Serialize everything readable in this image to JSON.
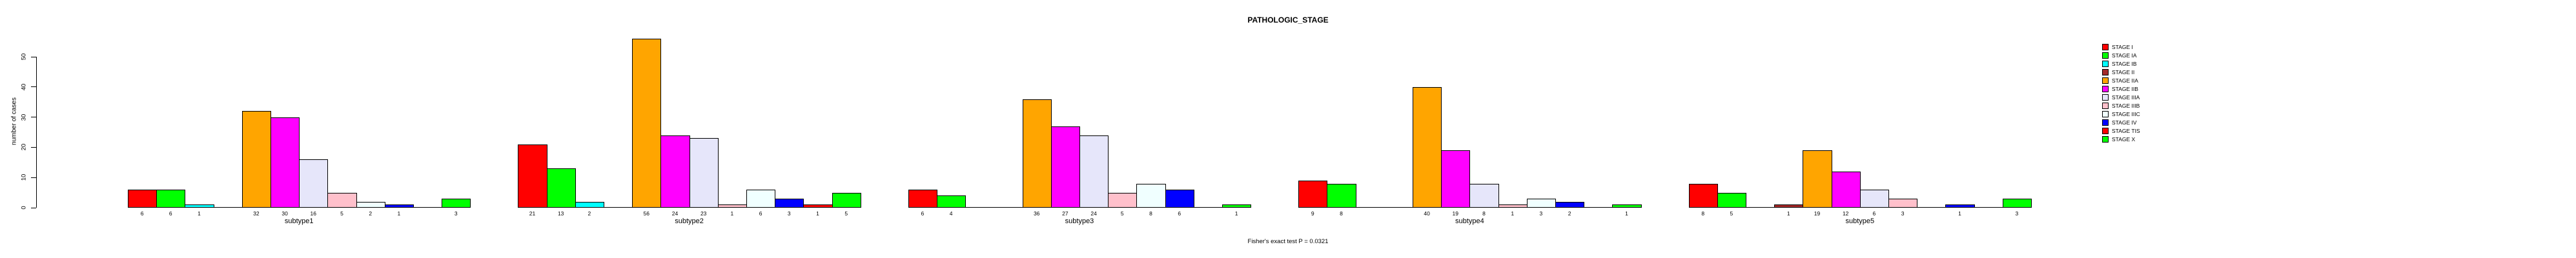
{
  "chart_data": {
    "type": "bar",
    "title": "PATHOLOGIC_STAGE",
    "ylabel": "number of cases",
    "footer": "Fisher's exact test P = 0.0321",
    "yticks": [
      0,
      10,
      20,
      30,
      40,
      50
    ],
    "ylim": [
      0,
      56
    ],
    "grid": false,
    "legend_position": "top-right",
    "stages": [
      {
        "label": "STAGE I",
        "color": "#FF0000"
      },
      {
        "label": "STAGE IA",
        "color": "#00FF00"
      },
      {
        "label": "STAGE IB",
        "color": "#00FFFF"
      },
      {
        "label": "STAGE II",
        "color": "#A52A2A"
      },
      {
        "label": "STAGE IIA",
        "color": "#FFA500"
      },
      {
        "label": "STAGE IIB",
        "color": "#FF00FF"
      },
      {
        "label": "STAGE IIIA",
        "color": "#E6E6FA"
      },
      {
        "label": "STAGE IIIB",
        "color": "#FFC0CB"
      },
      {
        "label": "STAGE IIIC",
        "color": "#F0FFFF"
      },
      {
        "label": "STAGE IV",
        "color": "#0000FF"
      },
      {
        "label": "STAGE TIS",
        "color": "#FF0000"
      },
      {
        "label": "STAGE X",
        "color": "#00FF00"
      }
    ],
    "categories": [
      "subtype1",
      "subtype2",
      "subtype3",
      "subtype4",
      "subtype5"
    ],
    "groups": [
      {
        "label": "subtype1",
        "values": [
          6,
          6,
          1,
          0,
          32,
          30,
          16,
          5,
          2,
          1,
          0,
          3
        ]
      },
      {
        "label": "subtype2",
        "values": [
          21,
          13,
          2,
          0,
          56,
          24,
          23,
          1,
          6,
          3,
          1,
          5
        ]
      },
      {
        "label": "subtype3",
        "values": [
          6,
          4,
          0,
          0,
          36,
          27,
          24,
          5,
          8,
          6,
          0,
          1
        ]
      },
      {
        "label": "subtype4",
        "values": [
          9,
          8,
          0,
          0,
          40,
          19,
          8,
          1,
          3,
          2,
          0,
          1
        ]
      },
      {
        "label": "subtype5",
        "values": [
          8,
          5,
          0,
          1,
          19,
          12,
          6,
          3,
          0,
          1,
          0,
          3
        ]
      }
    ]
  }
}
